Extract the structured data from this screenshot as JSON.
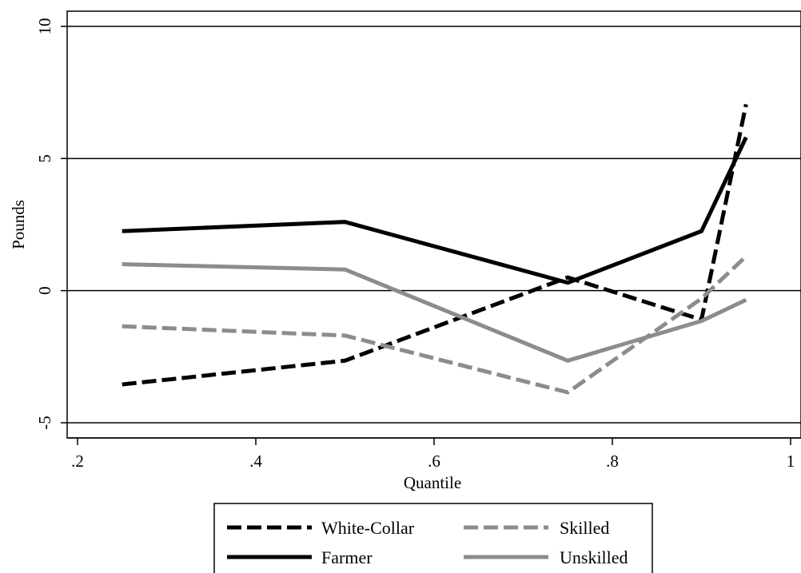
{
  "chart_data": {
    "type": "line",
    "xlabel": "Quantile",
    "ylabel": "Pounds",
    "xlim": [
      0.2,
      1.0
    ],
    "ylim": [
      -5,
      10
    ],
    "x_ticks": [
      0.2,
      0.4,
      0.6,
      0.8,
      1.0
    ],
    "x_tick_labels": [
      ".2",
      ".4",
      ".6",
      ".8",
      "1"
    ],
    "y_ticks": [
      -5,
      0,
      5,
      10
    ],
    "y_tick_labels": [
      "-5",
      "0",
      "5",
      "10"
    ],
    "grid": "horizontal major lines at y ticks",
    "legend_position": "bottom, outside plot, two columns",
    "x": [
      0.25,
      0.5,
      0.75,
      0.9,
      0.95
    ],
    "series": [
      {
        "name": "White-Collar",
        "values": [
          -3.55,
          -2.65,
          0.5,
          -1.1,
          7.05
        ],
        "color": "#000000",
        "dash": "dashed"
      },
      {
        "name": "Farmer",
        "values": [
          2.25,
          2.6,
          0.3,
          2.25,
          5.8
        ],
        "color": "#000000",
        "dash": "solid"
      },
      {
        "name": "Skilled",
        "values": [
          -1.35,
          -1.7,
          -3.85,
          -0.3,
          1.3
        ],
        "color": "#8c8c8c",
        "dash": "dashed"
      },
      {
        "name": "Unskilled",
        "values": [
          1.0,
          0.8,
          -2.65,
          -1.15,
          -0.35
        ],
        "color": "#8c8c8c",
        "dash": "solid"
      }
    ]
  }
}
